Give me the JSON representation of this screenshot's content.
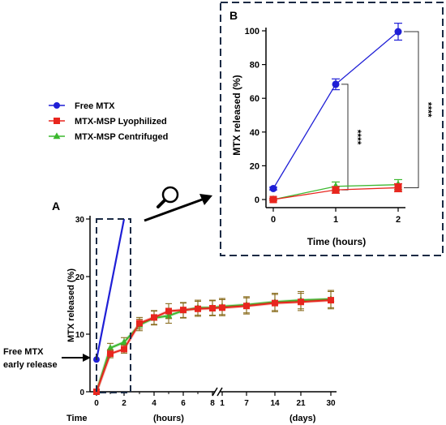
{
  "figure": {
    "panel_a_label": "A",
    "panel_b_label": "B",
    "annotation": "Free MTX\nearly release",
    "legend": [
      {
        "label": "Free MTX",
        "marker": "circle",
        "color": "#1f1fd6"
      },
      {
        "label": "MTX-MSP Lyophilized",
        "marker": "square",
        "color": "#e8261e"
      },
      {
        "label": "MTX-MSP Centrifuged",
        "marker": "triangle",
        "color": "#3bb82e"
      }
    ],
    "magnifier": {
      "icon": "magnifier-icon"
    }
  },
  "chart_data": [
    {
      "id": "A",
      "type": "line",
      "ylabel": "MTX released (%)",
      "xlabel_left": "Time",
      "xlabel_mid": "(hours)",
      "xlabel_right": "(days)",
      "ylim": [
        0,
        30
      ],
      "yticks": [
        "0",
        "10",
        "20",
        "30"
      ],
      "xticks": [
        "0",
        "2",
        "4",
        "6",
        "8",
        "1",
        "7",
        "14",
        "21",
        "30"
      ],
      "series": [
        {
          "name": "Free MTX",
          "color": "#1f1fd6",
          "marker": "circle",
          "points": [
            {
              "x": "0",
              "y": 5.6
            },
            {
              "x": "2",
              "y": 30
            }
          ]
        },
        {
          "name": "MTX-MSP Lyophilized",
          "color": "#e8261e",
          "marker": "square",
          "points": [
            {
              "x": "0",
              "y": 0,
              "err": 0.2
            },
            {
              "x": "1",
              "y": 6.6,
              "err": 0.7
            },
            {
              "x": "2",
              "y": 7.4,
              "err": 0.7
            },
            {
              "x": "3",
              "y": 11.9,
              "err": 1.0
            },
            {
              "x": "4",
              "y": 12.9,
              "err": 1.2
            },
            {
              "x": "5",
              "y": 14.0,
              "err": 1.3
            },
            {
              "x": "6",
              "y": 14.2,
              "err": 1.3
            },
            {
              "x": "7",
              "y": 14.4,
              "err": 1.3
            },
            {
              "x": "8",
              "y": 14.5,
              "err": 1.3
            },
            {
              "x": "1d",
              "y": 14.6,
              "err": 1.4
            },
            {
              "x": "7d",
              "y": 14.9,
              "err": 1.4
            },
            {
              "x": "14d",
              "y": 15.4,
              "err": 1.5
            },
            {
              "x": "21d",
              "y": 15.6,
              "err": 1.5
            },
            {
              "x": "30d",
              "y": 15.9,
              "err": 1.5
            }
          ]
        },
        {
          "name": "MTX-MSP Centrifuged",
          "color": "#3bb82e",
          "marker": "triangle",
          "points": [
            {
              "x": "0",
              "y": 0,
              "err": 0.2
            },
            {
              "x": "1",
              "y": 7.6,
              "err": 0.8
            },
            {
              "x": "2",
              "y": 8.6,
              "err": 0.8
            },
            {
              "x": "3",
              "y": 11.6,
              "err": 1.0
            },
            {
              "x": "4",
              "y": 12.8,
              "err": 1.2
            },
            {
              "x": "5",
              "y": 13.2,
              "err": 1.3
            },
            {
              "x": "6",
              "y": 14.1,
              "err": 1.3
            },
            {
              "x": "7",
              "y": 14.6,
              "err": 1.3
            },
            {
              "x": "8",
              "y": 14.6,
              "err": 1.3
            },
            {
              "x": "1d",
              "y": 14.8,
              "err": 1.4
            },
            {
              "x": "7d",
              "y": 15.1,
              "err": 1.4
            },
            {
              "x": "14d",
              "y": 15.6,
              "err": 1.5
            },
            {
              "x": "21d",
              "y": 15.9,
              "err": 1.5
            },
            {
              "x": "30d",
              "y": 16.1,
              "err": 1.5
            }
          ]
        }
      ]
    },
    {
      "id": "B",
      "type": "line",
      "ylabel": "MTX released (%)",
      "xlabel": "Time (hours)",
      "ylim": [
        0,
        100
      ],
      "yticks": [
        "0",
        "20",
        "40",
        "60",
        "80",
        "100"
      ],
      "xticks": [
        "0",
        "1",
        "2"
      ],
      "significance": [
        "****",
        "****"
      ],
      "series": [
        {
          "name": "Free MTX",
          "color": "#1f1fd6",
          "marker": "circle",
          "points": [
            {
              "x": 0,
              "y": 6.5,
              "err": 0.8
            },
            {
              "x": 1,
              "y": 68.3,
              "err": 3.2
            },
            {
              "x": 2,
              "y": 99.5,
              "err": 5.0
            }
          ]
        },
        {
          "name": "MTX-MSP Lyophilized",
          "color": "#e8261e",
          "marker": "square",
          "points": [
            {
              "x": 0,
              "y": 0,
              "err": 0.5
            },
            {
              "x": 1,
              "y": 5.7,
              "err": 2.0
            },
            {
              "x": 2,
              "y": 7.0,
              "err": 2.4
            }
          ]
        },
        {
          "name": "MTX-MSP Centrifuged",
          "color": "#3bb82e",
          "marker": "triangle",
          "points": [
            {
              "x": 0,
              "y": 0,
              "err": 0.5
            },
            {
              "x": 1,
              "y": 7.8,
              "err": 2.6
            },
            {
              "x": 2,
              "y": 8.8,
              "err": 3.0
            }
          ]
        }
      ]
    }
  ]
}
